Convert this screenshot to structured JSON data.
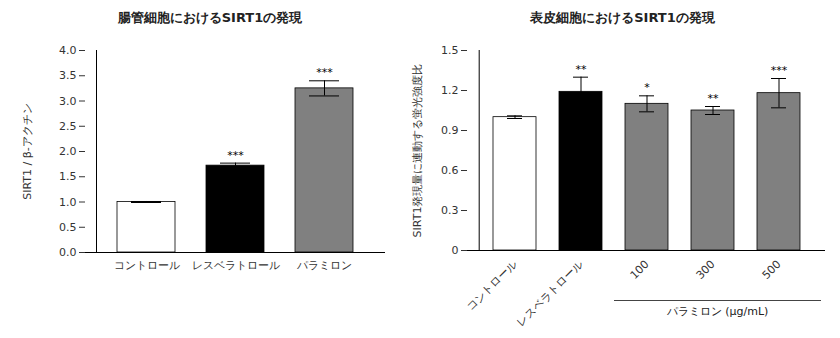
{
  "chart_data": [
    {
      "type": "bar",
      "title": "腸管細胞におけるSIRT1の発現",
      "ylabel": "SIRT1 / β-アクチン",
      "categories": [
        "コントロール",
        "レスベラトロール",
        "パラミロン"
      ],
      "values": [
        1.0,
        1.72,
        3.25
      ],
      "errors": [
        0.01,
        0.05,
        0.15
      ],
      "significance": [
        null,
        "***",
        "***"
      ],
      "colors": [
        "#ffffff",
        "#000000",
        "#808080"
      ],
      "ylim": [
        0,
        4
      ],
      "yticks": [
        {
          "value": 0,
          "label": "0.0"
        },
        0.5,
        {
          "value": 1,
          "label": "1.0"
        },
        1.5,
        {
          "value": 2,
          "label": "2.0"
        },
        2.5,
        {
          "value": 3,
          "label": "3.0"
        },
        3.5,
        {
          "value": 4,
          "label": "4.0"
        }
      ]
    },
    {
      "type": "bar",
      "title": "表皮細胞におけるSIRT1の発現",
      "ylabel": "SIRT1発現量に連動する蛍光強度比",
      "xlabel": "パラミロン (μg/mL)",
      "categories": [
        "コントロール",
        "レスベラトロール",
        "100",
        "300",
        "500"
      ],
      "values": [
        1.0,
        1.19,
        1.1,
        1.05,
        1.18
      ],
      "errors": [
        0.01,
        0.11,
        0.06,
        0.03,
        0.11
      ],
      "significance": [
        null,
        "**",
        "*",
        "**",
        "***"
      ],
      "colors": [
        "#ffffff",
        "#000000",
        "#808080",
        "#808080",
        "#808080"
      ],
      "ylim": [
        0,
        1.5
      ],
      "yticks": [
        0,
        0.3,
        0.6,
        0.9,
        1.2,
        1.5
      ]
    }
  ]
}
